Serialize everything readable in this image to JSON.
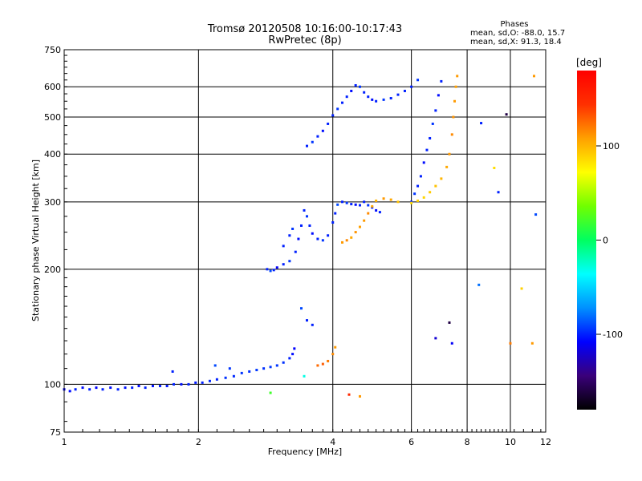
{
  "header": {
    "title_line1": "Tromsø 20120508 10:16:00-10:17:43",
    "title_line2": "RwPretec (8p)",
    "phases_title": "Phases",
    "phases_o": "mean, sd,O: -88.0, 15.7",
    "phases_x": "mean, sd,X: 91.3, 18.4"
  },
  "colorbar": {
    "unit": "[deg]",
    "ticks": [
      "100",
      "0",
      "-100"
    ],
    "range": [
      -180,
      180
    ],
    "colormap": [
      "#000000",
      "#3a007a",
      "#0000ff",
      "#0090ff",
      "#00ffff",
      "#00ff60",
      "#70ff00",
      "#ffff00",
      "#ffa000",
      "#ff3000",
      "#ff0000"
    ]
  },
  "chart_data": {
    "type": "scatter",
    "title": "Tromsø 20120508 10:16:00-10:17:43",
    "subtitle": "RwPretec (8p)",
    "xlabel": "Frequency [MHz]",
    "ylabel": "Stationary phase Virtual Height [km]",
    "xscale": "log",
    "yscale": "log",
    "xlim": [
      1,
      12
    ],
    "ylim": [
      75,
      750
    ],
    "x_ticks": [
      "1",
      "2",
      "4",
      "6",
      "8",
      "10",
      "12"
    ],
    "y_ticks": [
      "75",
      "100",
      "200",
      "300",
      "400",
      "500",
      "600",
      "750"
    ],
    "grid": true,
    "color_axis": "phase [deg]",
    "series": [
      {
        "points": [
          [
            1.0,
            97,
            -110
          ],
          [
            1.03,
            96,
            -105
          ],
          [
            1.06,
            97,
            -100
          ],
          [
            1.1,
            98,
            -105
          ],
          [
            1.14,
            97,
            -100
          ],
          [
            1.18,
            98,
            -108
          ],
          [
            1.22,
            97,
            -100
          ],
          [
            1.27,
            98,
            -105
          ],
          [
            1.32,
            97,
            -100
          ],
          [
            1.37,
            98,
            -104
          ],
          [
            1.42,
            98,
            -100
          ],
          [
            1.47,
            99,
            -105
          ],
          [
            1.52,
            98,
            -100
          ],
          [
            1.58,
            99,
            -104
          ],
          [
            1.64,
            99,
            -100
          ],
          [
            1.7,
            99,
            -102
          ],
          [
            1.76,
            100,
            -100
          ],
          [
            1.83,
            100,
            -104
          ],
          [
            1.9,
            100,
            -100
          ],
          [
            1.97,
            101,
            -102
          ],
          [
            2.04,
            101,
            -100
          ],
          [
            2.12,
            102,
            -98
          ],
          [
            2.2,
            103,
            -100
          ],
          [
            2.3,
            104,
            -96
          ],
          [
            2.4,
            105,
            -98
          ],
          [
            2.5,
            107,
            -95
          ],
          [
            2.6,
            108,
            -96
          ],
          [
            2.7,
            109,
            -94
          ],
          [
            2.8,
            110,
            -96
          ],
          [
            2.9,
            111,
            -94
          ],
          [
            3.0,
            112,
            -95
          ],
          [
            3.1,
            114,
            -96
          ],
          [
            3.2,
            117,
            -100
          ],
          [
            3.25,
            120,
            -105
          ],
          [
            3.28,
            124,
            -108
          ],
          [
            1.75,
            108,
            -100
          ],
          [
            2.18,
            112,
            -90
          ],
          [
            2.35,
            110,
            -95
          ]
        ]
      },
      {
        "points": [
          [
            2.85,
            200,
            -100
          ],
          [
            2.9,
            198,
            -90
          ],
          [
            2.95,
            199,
            -100
          ],
          [
            3.0,
            202,
            -110
          ],
          [
            3.1,
            206,
            -100
          ],
          [
            3.2,
            210,
            -95
          ],
          [
            3.3,
            222,
            -100
          ],
          [
            3.35,
            240,
            -105
          ],
          [
            3.4,
            260,
            -100
          ],
          [
            3.45,
            285,
            -100
          ],
          [
            3.5,
            275,
            -95
          ],
          [
            3.55,
            260,
            -100
          ],
          [
            3.6,
            248,
            -105
          ],
          [
            3.7,
            240,
            -100
          ],
          [
            3.8,
            238,
            -95
          ],
          [
            3.9,
            245,
            -100
          ],
          [
            4.0,
            265,
            -100
          ],
          [
            4.05,
            280,
            -100
          ],
          [
            4.1,
            295,
            -90
          ],
          [
            4.2,
            300,
            -100
          ],
          [
            4.3,
            298,
            -95
          ],
          [
            4.4,
            296,
            -100
          ],
          [
            4.5,
            295,
            -105
          ],
          [
            4.6,
            294,
            -100
          ],
          [
            4.7,
            300,
            -100
          ],
          [
            4.8,
            294,
            -95
          ],
          [
            4.9,
            290,
            -100
          ],
          [
            5.0,
            285,
            -105
          ],
          [
            5.1,
            282,
            -100
          ],
          [
            3.1,
            230,
            -100
          ],
          [
            3.2,
            245,
            -100
          ],
          [
            3.25,
            255,
            -95
          ]
        ]
      },
      {
        "points": [
          [
            3.5,
            420,
            -100
          ],
          [
            3.6,
            430,
            -95
          ],
          [
            3.7,
            445,
            -100
          ],
          [
            3.8,
            460,
            -105
          ],
          [
            3.9,
            480,
            -100
          ],
          [
            4.0,
            505,
            -100
          ],
          [
            4.1,
            525,
            -95
          ],
          [
            4.2,
            545,
            -100
          ],
          [
            4.3,
            565,
            -100
          ],
          [
            4.4,
            585,
            -105
          ],
          [
            4.5,
            605,
            -100
          ],
          [
            4.6,
            600,
            -95
          ],
          [
            4.7,
            580,
            -100
          ],
          [
            4.8,
            565,
            -100
          ],
          [
            4.9,
            555,
            -105
          ],
          [
            5.0,
            550,
            -100
          ],
          [
            5.2,
            555,
            -95
          ],
          [
            5.4,
            560,
            -100
          ],
          [
            5.6,
            572,
            -100
          ],
          [
            5.8,
            585,
            -100
          ],
          [
            6.0,
            600,
            -100
          ],
          [
            6.2,
            625,
            -95
          ]
        ]
      },
      {
        "points": [
          [
            6.0,
            300,
            -100
          ],
          [
            6.1,
            315,
            -95
          ],
          [
            6.2,
            330,
            -100
          ],
          [
            6.3,
            350,
            -100
          ],
          [
            6.4,
            380,
            -105
          ],
          [
            6.5,
            410,
            -100
          ],
          [
            6.6,
            440,
            -100
          ],
          [
            6.7,
            480,
            -95
          ],
          [
            6.8,
            520,
            -100
          ],
          [
            6.9,
            570,
            -105
          ],
          [
            7.0,
            620,
            -100
          ]
        ]
      },
      {
        "points": [
          [
            4.2,
            235,
            110
          ],
          [
            4.3,
            238,
            115
          ],
          [
            4.4,
            242,
            105
          ],
          [
            4.5,
            250,
            112
          ],
          [
            4.6,
            258,
            108
          ],
          [
            4.7,
            268,
            110
          ],
          [
            4.8,
            280,
            115
          ],
          [
            4.9,
            292,
            105
          ],
          [
            5.0,
            302,
            100
          ],
          [
            5.2,
            306,
            110
          ],
          [
            5.4,
            304,
            105
          ],
          [
            5.6,
            300,
            95
          ]
        ]
      },
      {
        "points": [
          [
            6.0,
            298,
            85
          ],
          [
            6.2,
            302,
            90
          ],
          [
            6.4,
            308,
            88
          ],
          [
            6.6,
            318,
            92
          ],
          [
            6.8,
            330,
            95
          ],
          [
            7.0,
            345,
            100
          ],
          [
            7.2,
            370,
            105
          ],
          [
            7.3,
            400,
            110
          ],
          [
            7.4,
            450,
            115
          ],
          [
            7.45,
            500,
            112
          ],
          [
            7.5,
            550,
            110
          ],
          [
            7.55,
            600,
            108
          ],
          [
            7.6,
            640,
            110
          ]
        ]
      },
      {
        "points": [
          [
            3.7,
            112,
            125
          ],
          [
            3.8,
            113,
            130
          ],
          [
            3.9,
            115,
            120
          ],
          [
            4.0,
            120,
            115
          ],
          [
            4.05,
            125,
            110
          ],
          [
            4.35,
            94,
            150
          ],
          [
            4.6,
            93,
            110
          ],
          [
            2.9,
            95,
            20
          ],
          [
            3.4,
            158,
            -90
          ],
          [
            3.5,
            147,
            -100
          ],
          [
            3.6,
            143,
            -100
          ],
          [
            3.45,
            105,
            -30
          ],
          [
            6.8,
            132,
            -120
          ],
          [
            7.4,
            128,
            -110
          ],
          [
            7.3,
            145,
            -160
          ],
          [
            8.5,
            182,
            -80
          ],
          [
            9.2,
            368,
            85
          ],
          [
            9.8,
            508,
            -160
          ],
          [
            10.0,
            128,
            120
          ],
          [
            10.6,
            178,
            90
          ],
          [
            11.2,
            128,
            110
          ],
          [
            11.4,
            278,
            -90
          ],
          [
            8.6,
            482,
            -100
          ],
          [
            9.4,
            318,
            -100
          ],
          [
            11.3,
            640,
            110
          ]
        ]
      }
    ]
  }
}
